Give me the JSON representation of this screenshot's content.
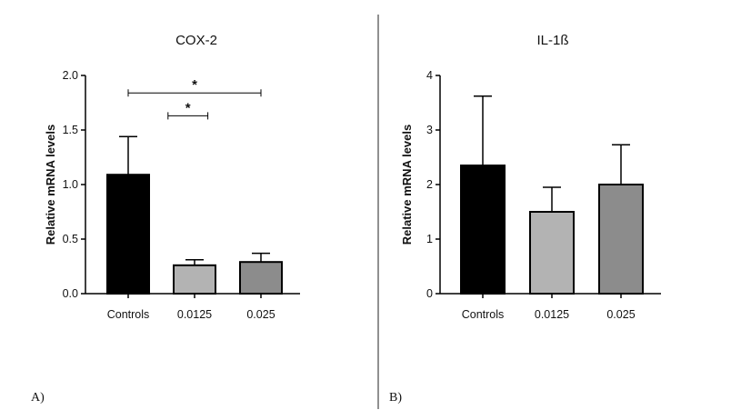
{
  "figure": {
    "panel_labels": [
      "A)",
      "B)"
    ]
  },
  "chart_data": [
    {
      "type": "bar",
      "title": "COX-2",
      "xlabel": "",
      "ylabel": "Relative mRNA levels",
      "categories": [
        "Controls",
        "0.0125",
        "0.025"
      ],
      "values": [
        1.09,
        0.26,
        0.29
      ],
      "errors": [
        0.35,
        0.05,
        0.08
      ],
      "bar_colors": [
        "#000000",
        "#b3b3b3",
        "#8c8c8c"
      ],
      "ylim": [
        0,
        2.0
      ],
      "yticks": [
        "0.0",
        "0.5",
        "1.0",
        "1.5",
        "2.0"
      ],
      "ytick_values": [
        0,
        0.5,
        1.0,
        1.5,
        2.0
      ],
      "significance": [
        {
          "from": 0,
          "to": 2,
          "label": "*",
          "y": 1.84
        },
        {
          "from": 0.6,
          "to": 1.2,
          "label": "*",
          "y": 1.63
        }
      ],
      "grid": false,
      "legend": "none"
    },
    {
      "type": "bar",
      "title": "IL-1ß",
      "xlabel": "",
      "ylabel": "Relative mRNA levels",
      "categories": [
        "Controls",
        "0.0125",
        "0.025"
      ],
      "values": [
        2.35,
        1.5,
        2.0
      ],
      "errors": [
        1.27,
        0.45,
        0.73
      ],
      "bar_colors": [
        "#000000",
        "#b3b3b3",
        "#8c8c8c"
      ],
      "ylim": [
        0,
        4
      ],
      "yticks": [
        "0",
        "1",
        "2",
        "3",
        "4"
      ],
      "ytick_values": [
        0,
        1,
        2,
        3,
        4
      ],
      "significance": [],
      "grid": false,
      "legend": "none"
    }
  ]
}
